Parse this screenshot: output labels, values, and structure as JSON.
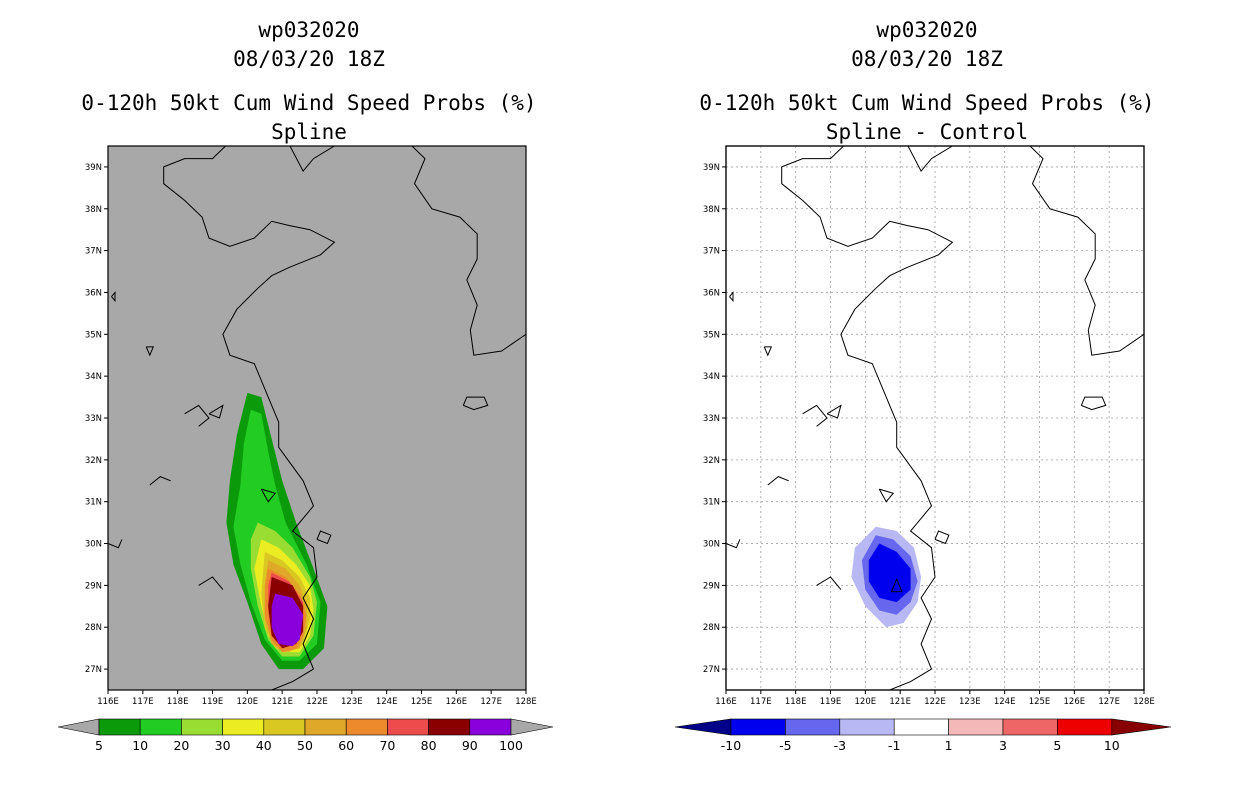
{
  "chart_data": [
    {
      "type": "heatmap",
      "storm_id": "wp032020",
      "datetime": "08/03/20 18Z",
      "title": "0-120h 50kt Cum Wind Speed Probs (%)",
      "subtitle": "Spline",
      "x_tick_labels": [
        "116E",
        "117E",
        "118E",
        "119E",
        "120E",
        "121E",
        "122E",
        "123E",
        "124E",
        "125E",
        "126E",
        "127E",
        "128E"
      ],
      "y_tick_labels": [
        "27N",
        "28N",
        "29N",
        "30N",
        "31N",
        "32N",
        "33N",
        "34N",
        "35N",
        "36N",
        "37N",
        "38N",
        "39N"
      ],
      "xlim": [
        116,
        128
      ],
      "ylim": [
        26.5,
        39.5
      ],
      "grid": false,
      "background_color": "#a8a8a8",
      "colorbar": {
        "labels": [
          "5",
          "10",
          "20",
          "30",
          "40",
          "50",
          "60",
          "70",
          "80",
          "90",
          "100"
        ],
        "colors": [
          "#0a9a0a",
          "#22cc22",
          "#99dd33",
          "#ecec22",
          "#d9c722",
          "#e0a828",
          "#ec8a2c",
          "#ee4c4c",
          "#8a0000",
          "#8a00dd"
        ],
        "end_color": "#a8a8a8"
      },
      "probability_levels": [
        5,
        10,
        20,
        30,
        40,
        50,
        60,
        70,
        80,
        90
      ]
    },
    {
      "type": "heatmap",
      "storm_id": "wp032020",
      "datetime": "08/03/20 18Z",
      "title": "0-120h 50kt Cum Wind Speed Probs (%)",
      "subtitle": "Spline - Control",
      "x_tick_labels": [
        "116E",
        "117E",
        "118E",
        "119E",
        "120E",
        "121E",
        "122E",
        "123E",
        "124E",
        "125E",
        "126E",
        "127E",
        "128E"
      ],
      "y_tick_labels": [
        "27N",
        "28N",
        "29N",
        "30N",
        "31N",
        "32N",
        "33N",
        "34N",
        "35N",
        "36N",
        "37N",
        "38N",
        "39N"
      ],
      "xlim": [
        116,
        128
      ],
      "ylim": [
        26.5,
        39.5
      ],
      "grid": true,
      "colorbar": {
        "labels": [
          "-10",
          "-5",
          "-3",
          "-1",
          "1",
          "3",
          "5",
          "10"
        ],
        "colors": [
          "#0000ee",
          "#6666ee",
          "#b8b8f4",
          "#ffffff",
          "#f4b8b8",
          "#ee6666",
          "#ee0000"
        ],
        "left_end_color": "#000088",
        "right_end_color": "#880000"
      },
      "difference_levels": [
        -10,
        -5,
        -3
      ]
    }
  ]
}
